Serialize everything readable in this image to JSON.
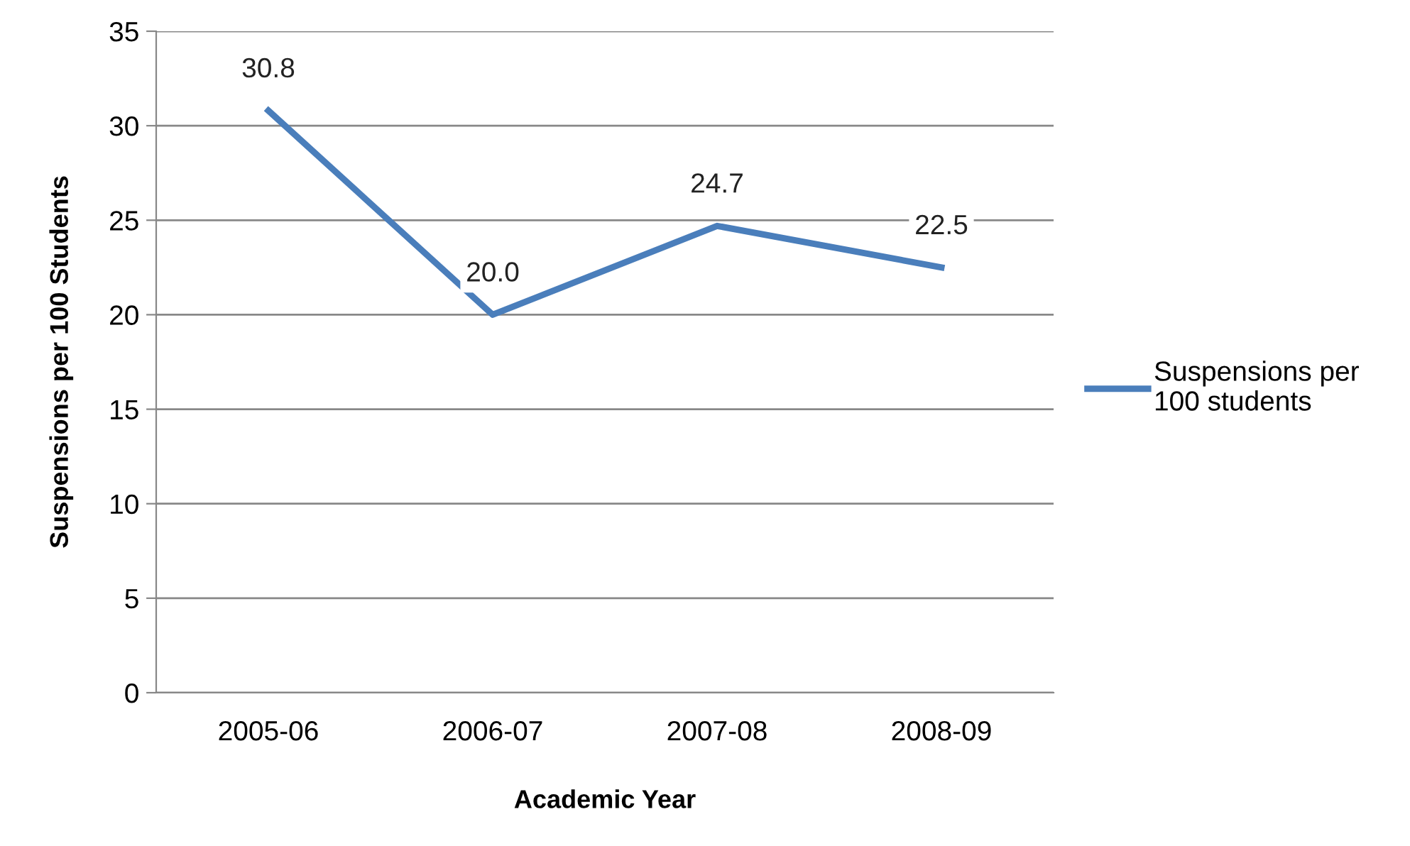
{
  "chart_data": {
    "type": "line",
    "xlabel": "Academic Year",
    "ylabel": "Suspensions per 100 Students",
    "categories": [
      "2005-06",
      "2006-07",
      "2007-08",
      "2008-09"
    ],
    "series": [
      {
        "name": "Suspensions per 100 students",
        "color": "#4a7ebb",
        "values": [
          30.8,
          20.0,
          24.7,
          22.5
        ],
        "value_labels": [
          "30.8",
          "20.0",
          "24.7",
          "22.5"
        ]
      }
    ],
    "ylim": [
      0,
      35
    ],
    "yticks": [
      0,
      5,
      10,
      15,
      20,
      25,
      30,
      35
    ],
    "grid": "y",
    "legend": "right",
    "marker": "none",
    "line_style": "solid"
  }
}
